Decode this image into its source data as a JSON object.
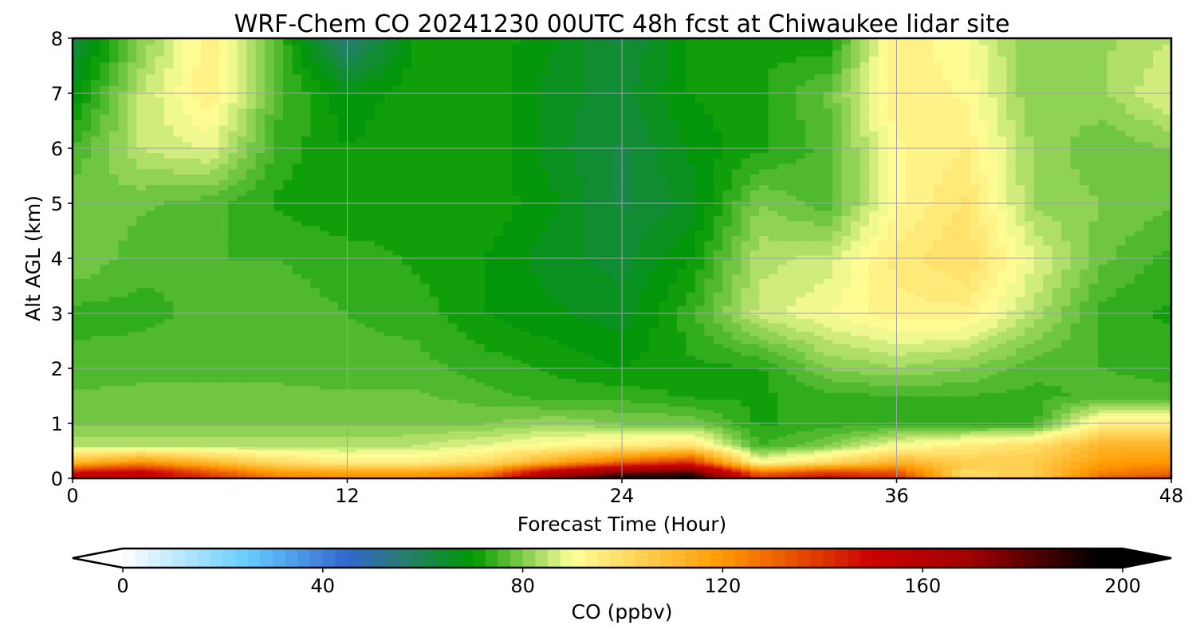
{
  "chart_data": {
    "type": "heatmap",
    "title": "WRF-Chem CO  20241230 00UTC 48h fcst at Chiwaukee lidar site",
    "xlabel": "Forecast Time (Hour)",
    "ylabel": "Alt AGL (km)",
    "xlim": [
      0,
      48
    ],
    "ylim": [
      0,
      8
    ],
    "xticks": [
      "0",
      "12",
      "24",
      "36",
      "48"
    ],
    "yticks": [
      "0",
      "1",
      "2",
      "3",
      "4",
      "5",
      "6",
      "7",
      "8"
    ],
    "grid": true,
    "x": [
      0,
      3,
      6,
      9,
      12,
      15,
      18,
      21,
      24,
      27,
      30,
      33,
      36,
      39,
      42,
      45,
      48
    ],
    "y": [
      0,
      0.1,
      0.3,
      0.6,
      1,
      1.5,
      2,
      3,
      4,
      5,
      6,
      7,
      8
    ],
    "z": [
      [
        155,
        150,
        140,
        125,
        120,
        120,
        130,
        175,
        195,
        195,
        140,
        150,
        140,
        100,
        105,
        130,
        140
      ],
      [
        150,
        155,
        135,
        120,
        118,
        118,
        125,
        160,
        180,
        185,
        130,
        140,
        135,
        100,
        105,
        125,
        130
      ],
      [
        110,
        120,
        110,
        100,
        95,
        95,
        100,
        115,
        130,
        140,
        90,
        100,
        112,
        105,
        105,
        118,
        120
      ],
      [
        84,
        84,
        84,
        84,
        84,
        85,
        88,
        92,
        95,
        98,
        75,
        80,
        90,
        95,
        100,
        112,
        112
      ],
      [
        80,
        80,
        80,
        80,
        80,
        80,
        80,
        82,
        80,
        80,
        72,
        74,
        74,
        74,
        74,
        95,
        95
      ],
      [
        78,
        78,
        78,
        78,
        78,
        78,
        76,
        74,
        74,
        72,
        72,
        74,
        75,
        75,
        74,
        76,
        76
      ],
      [
        76,
        77,
        77,
        77,
        76,
        76,
        74,
        72,
        70,
        72,
        72,
        80,
        82,
        80,
        76,
        75,
        74
      ],
      [
        74,
        74,
        76,
        76,
        75,
        74,
        70,
        68,
        66,
        74,
        86,
        90,
        94,
        94,
        84,
        74,
        72
      ],
      [
        80,
        76,
        75,
        75,
        74,
        72,
        70,
        66,
        64,
        70,
        84,
        86,
        96,
        100,
        88,
        78,
        74
      ],
      [
        80,
        78,
        76,
        72,
        70,
        72,
        72,
        68,
        62,
        66,
        80,
        76,
        92,
        98,
        82,
        80,
        78
      ],
      [
        75,
        85,
        88,
        74,
        70,
        72,
        72,
        66,
        62,
        68,
        72,
        76,
        92,
        95,
        82,
        78,
        80
      ],
      [
        68,
        85,
        95,
        76,
        68,
        72,
        72,
        66,
        64,
        70,
        72,
        78,
        95,
        92,
        80,
        82,
        88
      ],
      [
        62,
        80,
        95,
        75,
        55,
        70,
        72,
        68,
        62,
        70,
        72,
        70,
        95,
        90,
        80,
        82,
        85
      ]
    ],
    "colorbar": {
      "label": "CO  (ppbv)",
      "range": [
        0,
        200
      ],
      "extend": "both",
      "step": 2.5,
      "ticks": [
        "0",
        "40",
        "80",
        "120",
        "160",
        "200"
      ],
      "stops": [
        [
          0,
          "#ffffff"
        ],
        [
          25,
          "#66ccff"
        ],
        [
          45,
          "#3366cc"
        ],
        [
          55,
          "#2a7a7a"
        ],
        [
          70,
          "#009900"
        ],
        [
          90,
          "#ffff99"
        ],
        [
          120,
          "#ff9900"
        ],
        [
          150,
          "#cc0000"
        ],
        [
          170,
          "#a00000"
        ],
        [
          195,
          "#000000"
        ]
      ]
    }
  }
}
